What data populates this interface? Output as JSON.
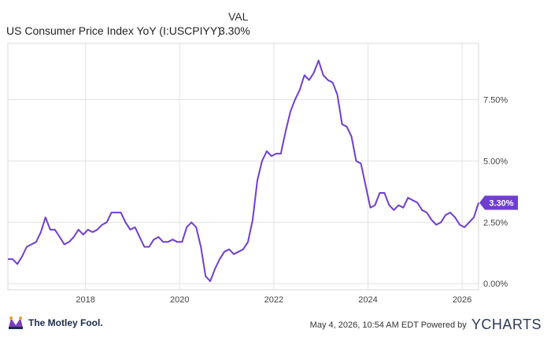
{
  "header": {
    "val_label": "VAL",
    "series_name": "US Consumer Price Index YoY (I:USCPIYY)",
    "series_value": "3.30%"
  },
  "chart_data": {
    "type": "line",
    "title": "",
    "xlabel": "",
    "ylabel": "",
    "line_color": "#6f3ed1",
    "grid": true,
    "y_axis_side": "right",
    "x_ticks": [
      "2018",
      "2020",
      "2022",
      "2024",
      "2026"
    ],
    "y_ticks": [
      {
        "value": 0,
        "label": "0.00%"
      },
      {
        "value": 2.5,
        "label": "2.50%"
      },
      {
        "value": 5,
        "label": "5.00%"
      },
      {
        "value": 7.5,
        "label": "7.50%"
      }
    ],
    "xlim": [
      2016.35,
      2026.35
    ],
    "ylim": [
      -0.25,
      9.8
    ],
    "last_value_label": "3.30%",
    "series": [
      {
        "values": [
          [
            2016.35,
            1.0
          ],
          [
            2016.45,
            1.0
          ],
          [
            2016.55,
            0.8
          ],
          [
            2016.65,
            1.1
          ],
          [
            2016.75,
            1.5
          ],
          [
            2016.85,
            1.6
          ],
          [
            2016.95,
            1.7
          ],
          [
            2017.05,
            2.1
          ],
          [
            2017.15,
            2.7
          ],
          [
            2017.25,
            2.2
          ],
          [
            2017.35,
            2.2
          ],
          [
            2017.45,
            1.9
          ],
          [
            2017.55,
            1.6
          ],
          [
            2017.65,
            1.7
          ],
          [
            2017.75,
            1.9
          ],
          [
            2017.85,
            2.2
          ],
          [
            2017.95,
            2.0
          ],
          [
            2018.05,
            2.2
          ],
          [
            2018.15,
            2.1
          ],
          [
            2018.25,
            2.2
          ],
          [
            2018.35,
            2.4
          ],
          [
            2018.45,
            2.5
          ],
          [
            2018.55,
            2.9
          ],
          [
            2018.65,
            2.9
          ],
          [
            2018.75,
            2.9
          ],
          [
            2018.85,
            2.5
          ],
          [
            2018.95,
            2.2
          ],
          [
            2019.05,
            2.3
          ],
          [
            2019.15,
            1.9
          ],
          [
            2019.25,
            1.5
          ],
          [
            2019.35,
            1.5
          ],
          [
            2019.45,
            1.8
          ],
          [
            2019.55,
            1.9
          ],
          [
            2019.65,
            1.7
          ],
          [
            2019.75,
            1.7
          ],
          [
            2019.85,
            1.8
          ],
          [
            2019.95,
            1.7
          ],
          [
            2020.05,
            1.7
          ],
          [
            2020.15,
            2.3
          ],
          [
            2020.25,
            2.5
          ],
          [
            2020.35,
            2.3
          ],
          [
            2020.45,
            1.5
          ],
          [
            2020.55,
            0.3
          ],
          [
            2020.65,
            0.1
          ],
          [
            2020.75,
            0.6
          ],
          [
            2020.85,
            1.0
          ],
          [
            2020.95,
            1.3
          ],
          [
            2021.05,
            1.4
          ],
          [
            2021.15,
            1.2
          ],
          [
            2021.25,
            1.3
          ],
          [
            2021.35,
            1.4
          ],
          [
            2021.45,
            1.7
          ],
          [
            2021.55,
            2.6
          ],
          [
            2021.65,
            4.2
          ],
          [
            2021.75,
            5.0
          ],
          [
            2021.85,
            5.4
          ],
          [
            2021.95,
            5.2
          ],
          [
            2022.05,
            5.3
          ],
          [
            2022.15,
            5.3
          ],
          [
            2022.25,
            6.2
          ],
          [
            2022.35,
            7.0
          ],
          [
            2022.45,
            7.5
          ],
          [
            2022.55,
            7.9
          ],
          [
            2022.65,
            8.5
          ],
          [
            2022.75,
            8.3
          ],
          [
            2022.85,
            8.6
          ],
          [
            2022.95,
            9.1
          ],
          [
            2023.05,
            8.5
          ],
          [
            2023.15,
            8.3
          ],
          [
            2023.25,
            8.2
          ],
          [
            2023.35,
            7.7
          ],
          [
            2023.45,
            6.5
          ],
          [
            2023.55,
            6.4
          ],
          [
            2023.65,
            6.0
          ],
          [
            2023.75,
            5.0
          ],
          [
            2023.85,
            4.9
          ],
          [
            2023.95,
            4.0
          ],
          [
            2024.05,
            3.1
          ],
          [
            2024.15,
            3.2
          ],
          [
            2024.25,
            3.7
          ],
          [
            2024.35,
            3.7
          ],
          [
            2024.45,
            3.2
          ],
          [
            2024.55,
            3.0
          ],
          [
            2024.65,
            3.2
          ],
          [
            2024.75,
            3.1
          ],
          [
            2024.85,
            3.5
          ],
          [
            2024.95,
            3.4
          ],
          [
            2025.05,
            3.3
          ],
          [
            2025.15,
            3.0
          ],
          [
            2025.25,
            2.9
          ],
          [
            2025.35,
            2.6
          ],
          [
            2025.45,
            2.4
          ],
          [
            2025.55,
            2.5
          ],
          [
            2025.65,
            2.8
          ],
          [
            2025.75,
            2.9
          ],
          [
            2025.85,
            2.7
          ],
          [
            2025.95,
            2.4
          ],
          [
            2026.05,
            2.3
          ],
          [
            2026.15,
            2.5
          ],
          [
            2026.25,
            2.7
          ],
          [
            2026.35,
            3.3
          ]
        ]
      }
    ]
  },
  "footer": {
    "logo_text": "The Motley Fool.",
    "credit": "May 4, 2026, 10:54 AM EDT  Powered by",
    "brand": "YCHARTS"
  }
}
